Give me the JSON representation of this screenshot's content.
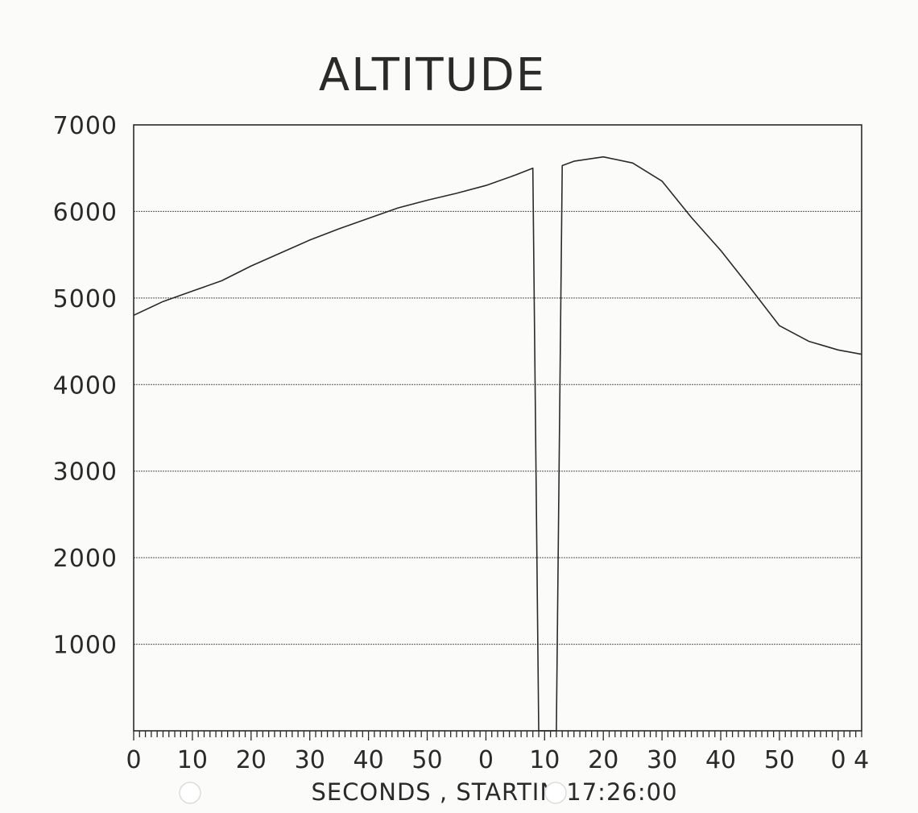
{
  "chart_data": {
    "type": "line",
    "title": "ALTITUDE",
    "xlabel": "SECONDS ,  STARTIN   17:26:00",
    "ylabel": "",
    "ylim": [
      0,
      7000
    ],
    "yticks": [
      1000,
      2000,
      3000,
      4000,
      5000,
      6000,
      7000
    ],
    "grid": true,
    "x_tick_labels": [
      "0",
      "10",
      "20",
      "30",
      "40",
      "50",
      "0",
      "10",
      "20",
      "30",
      "40",
      "50",
      "0 4"
    ],
    "x_range_seconds": [
      0,
      124
    ],
    "series": [
      {
        "x": [
          0,
          5,
          10,
          15,
          20,
          25,
          30,
          35,
          40,
          45,
          50,
          55,
          60,
          65,
          68,
          69,
          70,
          71,
          72,
          73,
          75,
          80,
          85,
          90,
          95,
          100,
          105,
          110,
          115,
          120,
          124
        ],
        "y": [
          4800,
          4960,
          5080,
          5200,
          5370,
          5520,
          5670,
          5800,
          5920,
          6040,
          6130,
          6210,
          6300,
          6420,
          6500,
          0,
          0,
          0,
          0,
          6530,
          6580,
          6630,
          6560,
          6350,
          5930,
          5550,
          5120,
          4680,
          4500,
          4400,
          4350
        ]
      }
    ]
  }
}
